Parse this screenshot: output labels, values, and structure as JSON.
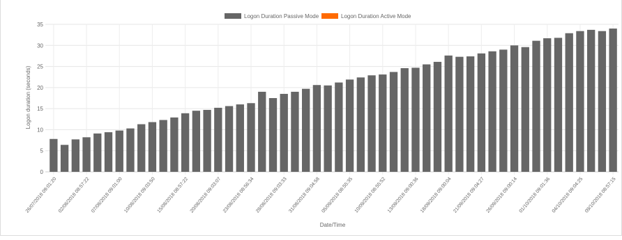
{
  "chart_data": {
    "type": "bar",
    "xlabel": "Date/Time",
    "ylabel": "Logon duration (seconds)",
    "ylim": [
      0,
      35
    ],
    "yticks": [
      0,
      5,
      10,
      15,
      20,
      25,
      30,
      35
    ],
    "grid": true,
    "legend_position": "top-center",
    "series": [
      {
        "name": "Logon Duration Passive Mode",
        "color": "#666666",
        "values": [
          7.8,
          6.4,
          7.7,
          8.2,
          9.1,
          9.4,
          9.8,
          10.3,
          11.3,
          11.8,
          12.3,
          12.9,
          13.9,
          14.5,
          14.7,
          15.2,
          15.6,
          16.0,
          16.3,
          19.0,
          17.5,
          18.5,
          19.0,
          19.7,
          20.6,
          20.5,
          21.2,
          21.9,
          22.4,
          22.9,
          23.1,
          23.7,
          24.6,
          24.7,
          25.5,
          26.1,
          27.6,
          27.3,
          27.4,
          28.1,
          28.6,
          29.0,
          30.0,
          29.6,
          31.1,
          31.7,
          31.8,
          32.9,
          33.4,
          33.7,
          33.4,
          34.0
        ]
      },
      {
        "name": "Logon Duration Active Mode",
        "color": "#ff6a00",
        "values": []
      }
    ],
    "tick_labels": [
      "26/07/2018 09:01:20",
      "02/08/2018 08:57:22",
      "07/08/2018 09:01:00",
      "10/08/2018 09:03:50",
      "15/08/2018 08:57:22",
      "20/08/2018 09:03:07",
      "23/08/2018 08:56:34",
      "28/08/2018 09:03:33",
      "31/08/2018 09:04:58",
      "05/09/2018 08:55:35",
      "10/09/2018 08:55:52",
      "13/09/2018 09:00:36",
      "18/09/2018 09:00:04",
      "21/09/2018 09:04:27",
      "26/09/2018 09:00:14",
      "01/10/2018 09:01:36",
      "04/10/2018 09:04:25",
      "09/10/2018 08:57:15"
    ]
  }
}
